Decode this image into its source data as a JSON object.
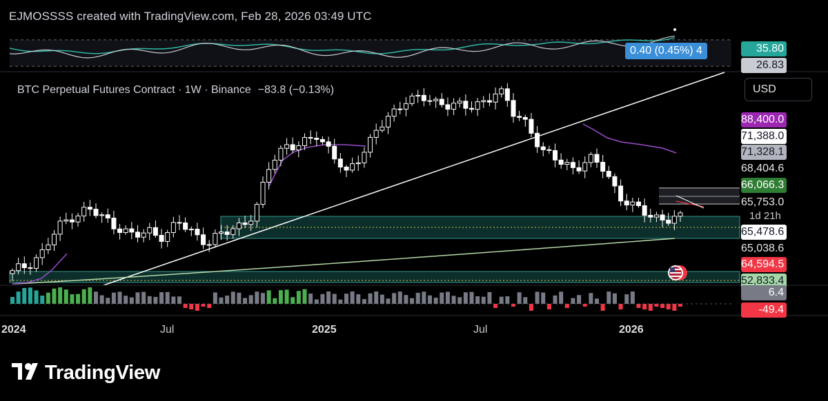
{
  "header": {
    "text": "EJMOSSSS created with TradingView.com, Feb 28, 2026 03:49 UTC"
  },
  "title": {
    "symbol": "BTC Perpetual Futures Contract · 1W · Binance",
    "change": "−83.8 (−0.13%)"
  },
  "currency": "USD",
  "oscillator": {
    "badge": "0.40 (0.45%) 4",
    "label_top": "35.80",
    "label_bottom": "26.83",
    "colors": {
      "rsi": "#2fb8a3",
      "ma": "#c9ccd3"
    }
  },
  "price_labels": [
    {
      "value": "88,400.0",
      "bg": "#9c27b0",
      "fg": "#ffffff"
    },
    {
      "value": "71,388.0",
      "bg": "#ffffff",
      "fg": "#131722"
    },
    {
      "value": "71,328.1",
      "bg": "#b2b5be",
      "fg": "#131722"
    },
    {
      "value": "68,404.6",
      "bg": "",
      "fg": "#e8e8e8"
    },
    {
      "value": "66,066.3",
      "bg": "#2e7d32",
      "fg": "#ffffff"
    },
    {
      "value": "65,753.0",
      "bg": "",
      "fg": "#e8e8e8"
    },
    {
      "value": "65,478.6",
      "bg": "#ffffff",
      "fg": "#131722"
    },
    {
      "value": "65,038.6",
      "bg": "",
      "fg": "#e8e8e8"
    },
    {
      "value": "64,594.5",
      "bg": "#f23645",
      "fg": "#ffffff"
    },
    {
      "value": "52,833.4",
      "bg": "#a5d6a7",
      "fg": "#131722"
    },
    {
      "value": "6.4",
      "bg": "#787b86",
      "fg": "#ffffff"
    },
    {
      "value": "-49.4",
      "bg": "#f23645",
      "fg": "#ffffff"
    }
  ],
  "timer": "1d 21h",
  "x_ticks": [
    {
      "label": "2024",
      "bold": true
    },
    {
      "label": "Jul",
      "bold": false
    },
    {
      "label": "2025",
      "bold": true
    },
    {
      "label": "Jul",
      "bold": false
    },
    {
      "label": "2026",
      "bold": true
    }
  ],
  "brand": {
    "name": "TradingView"
  },
  "chart_data": {
    "type": "candlestick",
    "timeframe": "1W",
    "x_range": [
      "2024-01",
      "2026-02"
    ],
    "candles_close_trend": [
      43000,
      47000,
      52000,
      62000,
      68000,
      70000,
      66000,
      63000,
      58000,
      61000,
      59000,
      64000,
      60000,
      56000,
      60000,
      64000,
      68000,
      90000,
      98000,
      96000,
      102000,
      95000,
      84000,
      94000,
      104000,
      109000,
      118000,
      117000,
      114000,
      116000,
      112000,
      115000,
      122000,
      110000,
      106000,
      94000,
      90000,
      88000,
      91000,
      87000,
      76000,
      70000,
      68000,
      66000,
      65753
    ],
    "indicators": [
      "EMA (purple)",
      "SMA 200 (light green)",
      "RSI with MA (oscillator pane)",
      "Histogram (volume/momentum)"
    ],
    "annotations": [
      "Ascending trendline",
      "Demand zones (teal rectangles)"
    ],
    "colors": {
      "up": "#ffffff",
      "down": "#ffffff",
      "ema": "#9c4dcc",
      "sma": "#b7d9a8",
      "zone": "#26a69a"
    }
  }
}
